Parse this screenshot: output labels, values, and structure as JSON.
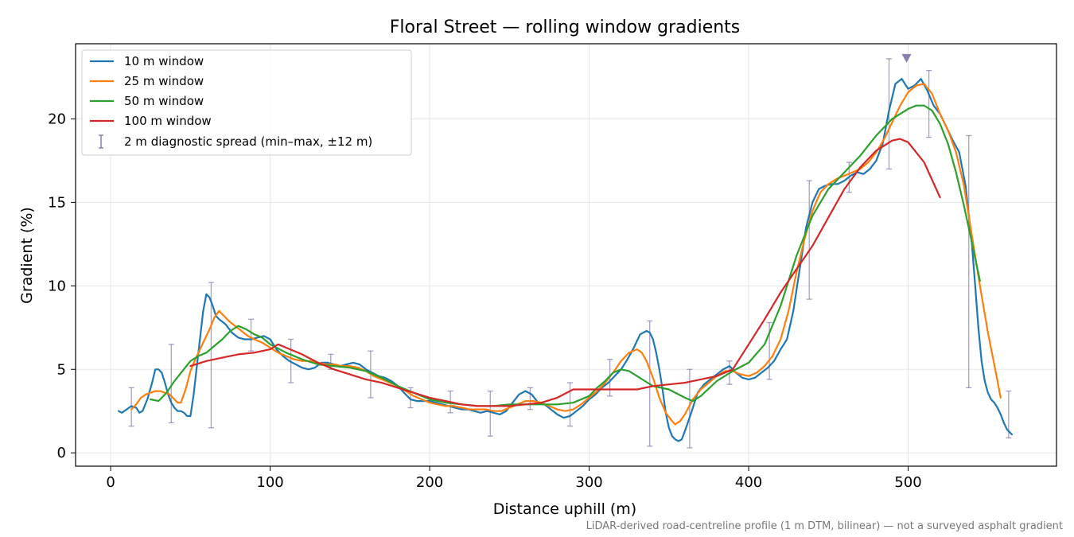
{
  "chart_data": {
    "type": "line",
    "title": "Floral Street — rolling window gradients",
    "xlabel": "Distance uphill (m)",
    "ylabel": "Gradient (%)",
    "xlim": [
      -22,
      593
    ],
    "ylim": [
      -0.8,
      24.5
    ],
    "xticks": [
      0,
      100,
      200,
      300,
      400,
      500
    ],
    "yticks": [
      0,
      5,
      10,
      15,
      20
    ],
    "grid": true,
    "legend_position": "top-left",
    "note": "LiDAR-derived road-centreline profile (1 m DTM, bilinear) — not a surveyed asphalt gradient",
    "series": [
      {
        "name": "10 m window",
        "color": "#1f77b4",
        "x": [
          5,
          7,
          10,
          13,
          16,
          18,
          20,
          23,
          26,
          28,
          30,
          32,
          34,
          36,
          38,
          40,
          42,
          44,
          46,
          48,
          50,
          52,
          55,
          58,
          60,
          62,
          64,
          66,
          68,
          72,
          76,
          80,
          84,
          88,
          92,
          96,
          100,
          104,
          108,
          112,
          116,
          120,
          124,
          128,
          132,
          136,
          140,
          144,
          148,
          152,
          156,
          160,
          164,
          168,
          172,
          176,
          180,
          184,
          188,
          192,
          196,
          200,
          204,
          208,
          212,
          216,
          220,
          224,
          228,
          232,
          236,
          240,
          244,
          248,
          252,
          256,
          260,
          264,
          268,
          272,
          276,
          280,
          284,
          288,
          292,
          296,
          300,
          304,
          308,
          312,
          316,
          320,
          324,
          328,
          332,
          336,
          338,
          340,
          342,
          344,
          346,
          348,
          350,
          352,
          354,
          356,
          358,
          360,
          364,
          368,
          372,
          376,
          380,
          384,
          388,
          392,
          396,
          400,
          404,
          408,
          412,
          416,
          420,
          424,
          428,
          432,
          436,
          440,
          444,
          448,
          452,
          456,
          460,
          464,
          468,
          472,
          476,
          480,
          484,
          488,
          492,
          496,
          500,
          504,
          508,
          512,
          516,
          520,
          524,
          528,
          532,
          536,
          540,
          542,
          544,
          546,
          548,
          550,
          552,
          554,
          556,
          558,
          560,
          562,
          565
        ],
        "y": [
          2.5,
          2.4,
          2.6,
          2.8,
          2.7,
          2.4,
          2.5,
          3.2,
          4.2,
          5.0,
          5.0,
          4.8,
          4.2,
          3.5,
          3.0,
          2.7,
          2.5,
          2.5,
          2.4,
          2.2,
          2.2,
          3.5,
          6.0,
          8.5,
          9.5,
          9.3,
          8.8,
          8.2,
          8.0,
          7.7,
          7.2,
          6.9,
          6.8,
          6.8,
          6.9,
          7.0,
          6.8,
          6.2,
          5.8,
          5.5,
          5.3,
          5.1,
          5.0,
          5.1,
          5.4,
          5.4,
          5.3,
          5.2,
          5.3,
          5.4,
          5.3,
          5.0,
          4.8,
          4.6,
          4.5,
          4.3,
          4.0,
          3.6,
          3.2,
          3.1,
          3.1,
          3.1,
          3.0,
          2.9,
          2.8,
          2.7,
          2.6,
          2.6,
          2.5,
          2.4,
          2.5,
          2.4,
          2.3,
          2.5,
          3.0,
          3.5,
          3.7,
          3.5,
          3.0,
          2.9,
          2.6,
          2.3,
          2.1,
          2.2,
          2.5,
          2.8,
          3.2,
          3.5,
          3.9,
          4.2,
          4.6,
          5.0,
          5.6,
          6.3,
          7.1,
          7.3,
          7.2,
          6.8,
          6.0,
          5.0,
          3.8,
          2.4,
          1.5,
          1.0,
          0.8,
          0.7,
          0.8,
          1.3,
          2.4,
          3.6,
          4.1,
          4.4,
          4.7,
          5.0,
          5.2,
          4.8,
          4.5,
          4.4,
          4.5,
          4.8,
          5.1,
          5.5,
          6.2,
          6.8,
          8.5,
          11.0,
          13.5,
          15.0,
          15.8,
          16.0,
          16.1,
          16.1,
          16.3,
          16.6,
          16.8,
          16.7,
          17.0,
          17.5,
          18.5,
          20.5,
          22.1,
          22.4,
          21.8,
          22.0,
          22.4,
          21.7,
          20.8,
          20.3,
          19.5,
          18.7,
          18.0,
          16.0,
          12.5,
          10.0,
          7.5,
          5.5,
          4.3,
          3.6,
          3.2,
          3.0,
          2.7,
          2.3,
          1.8,
          1.4,
          1.1
        ]
      },
      {
        "name": "25 m window",
        "color": "#ff7f0e",
        "x": [
          13,
          16,
          19,
          22,
          25,
          28,
          31,
          34,
          37,
          40,
          42,
          44,
          47,
          50,
          53,
          56,
          59,
          62,
          65,
          68,
          71,
          74,
          78,
          82,
          86,
          90,
          95,
          100,
          105,
          110,
          115,
          120,
          125,
          130,
          135,
          140,
          145,
          150,
          155,
          160,
          165,
          170,
          175,
          180,
          185,
          190,
          195,
          200,
          205,
          210,
          215,
          220,
          225,
          230,
          235,
          240,
          245,
          250,
          255,
          260,
          265,
          270,
          275,
          280,
          285,
          290,
          295,
          300,
          305,
          310,
          315,
          320,
          325,
          330,
          333,
          336,
          340,
          344,
          348,
          352,
          354,
          357,
          360,
          365,
          370,
          375,
          380,
          385,
          390,
          395,
          400,
          405,
          410,
          415,
          420,
          425,
          430,
          435,
          440,
          445,
          450,
          455,
          460,
          465,
          470,
          475,
          480,
          485,
          490,
          495,
          500,
          505,
          510,
          515,
          520,
          525,
          530,
          535,
          540,
          545,
          550,
          555,
          558
        ],
        "y": [
          2.6,
          2.9,
          3.3,
          3.5,
          3.6,
          3.7,
          3.7,
          3.6,
          3.5,
          3.2,
          3.0,
          3.0,
          3.8,
          4.9,
          5.6,
          6.2,
          6.8,
          7.4,
          8.1,
          8.5,
          8.2,
          7.9,
          7.6,
          7.3,
          7.0,
          6.8,
          6.6,
          6.3,
          6.0,
          5.8,
          5.6,
          5.5,
          5.5,
          5.4,
          5.3,
          5.3,
          5.2,
          5.2,
          5.1,
          4.9,
          4.6,
          4.4,
          4.2,
          4.0,
          3.7,
          3.4,
          3.2,
          3.0,
          2.9,
          2.8,
          2.8,
          2.7,
          2.6,
          2.6,
          2.6,
          2.5,
          2.5,
          2.7,
          2.9,
          3.1,
          3.1,
          3.0,
          2.8,
          2.6,
          2.5,
          2.6,
          2.9,
          3.3,
          3.7,
          4.2,
          4.8,
          5.5,
          6.0,
          6.2,
          6.0,
          5.5,
          4.5,
          3.3,
          2.4,
          1.9,
          1.7,
          1.9,
          2.3,
          3.2,
          3.8,
          4.2,
          4.6,
          4.9,
          4.9,
          4.7,
          4.6,
          4.8,
          5.2,
          5.8,
          6.8,
          8.5,
          10.8,
          12.8,
          14.5,
          15.6,
          16.1,
          16.4,
          16.6,
          16.8,
          17.0,
          17.4,
          18.0,
          18.8,
          19.8,
          20.8,
          21.6,
          22.0,
          22.1,
          21.5,
          20.3,
          19.3,
          18.0,
          16.0,
          13.0,
          10.0,
          7.2,
          4.8,
          3.3
        ]
      },
      {
        "name": "50 m window",
        "color": "#2ca02c",
        "x": [
          25,
          30,
          35,
          40,
          45,
          50,
          55,
          60,
          65,
          70,
          75,
          80,
          85,
          90,
          95,
          100,
          110,
          120,
          130,
          140,
          150,
          160,
          170,
          180,
          190,
          200,
          210,
          220,
          230,
          240,
          250,
          260,
          270,
          280,
          290,
          300,
          305,
          310,
          315,
          320,
          325,
          330,
          335,
          340,
          350,
          360,
          365,
          370,
          380,
          390,
          400,
          410,
          420,
          430,
          440,
          450,
          460,
          470,
          480,
          490,
          500,
          505,
          510,
          515,
          520,
          525,
          530,
          535,
          540,
          545
        ],
        "y": [
          3.2,
          3.1,
          3.6,
          4.3,
          4.9,
          5.5,
          5.8,
          6.0,
          6.4,
          6.8,
          7.3,
          7.6,
          7.4,
          7.1,
          6.9,
          6.5,
          6.0,
          5.6,
          5.3,
          5.2,
          5.1,
          4.9,
          4.5,
          4.0,
          3.6,
          3.2,
          3.0,
          2.9,
          2.8,
          2.8,
          2.9,
          2.9,
          2.9,
          2.9,
          3.0,
          3.4,
          3.9,
          4.3,
          4.8,
          5.0,
          4.9,
          4.6,
          4.3,
          4.0,
          3.8,
          3.3,
          3.1,
          3.4,
          4.3,
          4.9,
          5.4,
          6.5,
          8.8,
          11.8,
          14.2,
          15.8,
          16.8,
          17.8,
          19.0,
          20.0,
          20.6,
          20.8,
          20.8,
          20.5,
          19.7,
          18.5,
          16.8,
          14.8,
          12.6,
          10.3
        ]
      },
      {
        "name": "100 m window",
        "color": "#d62728",
        "x": [
          50,
          60,
          70,
          80,
          90,
          100,
          105,
          110,
          120,
          130,
          140,
          150,
          160,
          170,
          180,
          190,
          200,
          210,
          220,
          230,
          240,
          250,
          260,
          270,
          280,
          290,
          300,
          310,
          320,
          330,
          340,
          350,
          360,
          370,
          380,
          390,
          400,
          410,
          420,
          430,
          440,
          450,
          460,
          470,
          480,
          490,
          495,
          500,
          510,
          520
        ],
        "y": [
          5.2,
          5.5,
          5.7,
          5.9,
          6.0,
          6.2,
          6.5,
          6.3,
          5.9,
          5.4,
          5.0,
          4.7,
          4.4,
          4.2,
          3.9,
          3.6,
          3.3,
          3.1,
          2.9,
          2.8,
          2.8,
          2.8,
          2.9,
          3.0,
          3.3,
          3.8,
          3.8,
          3.8,
          3.8,
          3.8,
          4.0,
          4.1,
          4.2,
          4.4,
          4.6,
          5.0,
          6.5,
          8.0,
          9.6,
          11.0,
          12.4,
          14.1,
          15.8,
          17.1,
          18.1,
          18.7,
          18.8,
          18.6,
          17.4,
          15.3
        ]
      }
    ],
    "error_bars": {
      "name": "2 m diagnostic spread (min–max, ±12 m)",
      "color": "#8c7eb0",
      "points": [
        {
          "x": 13,
          "low": 1.6,
          "high": 3.9
        },
        {
          "x": 38,
          "low": 1.8,
          "high": 6.5
        },
        {
          "x": 63,
          "low": 1.5,
          "high": 10.2
        },
        {
          "x": 88,
          "low": 6.1,
          "high": 8.0
        },
        {
          "x": 113,
          "low": 4.2,
          "high": 6.8
        },
        {
          "x": 138,
          "low": 5.0,
          "high": 5.9
        },
        {
          "x": 163,
          "low": 3.3,
          "high": 6.1
        },
        {
          "x": 188,
          "low": 2.7,
          "high": 3.9
        },
        {
          "x": 213,
          "low": 2.4,
          "high": 3.7
        },
        {
          "x": 238,
          "low": 1.0,
          "high": 3.7
        },
        {
          "x": 263,
          "low": 2.6,
          "high": 3.9
        },
        {
          "x": 288,
          "low": 1.6,
          "high": 4.2
        },
        {
          "x": 313,
          "low": 3.4,
          "high": 5.6
        },
        {
          "x": 338,
          "low": 0.4,
          "high": 7.9
        },
        {
          "x": 363,
          "low": 0.3,
          "high": 5.0
        },
        {
          "x": 388,
          "low": 4.1,
          "high": 5.5
        },
        {
          "x": 413,
          "low": 4.4,
          "high": 7.8
        },
        {
          "x": 438,
          "low": 9.2,
          "high": 16.3
        },
        {
          "x": 463,
          "low": 15.6,
          "high": 17.4
        },
        {
          "x": 488,
          "low": 17.0,
          "high": 23.6
        },
        {
          "x": 513,
          "low": 18.9,
          "high": 22.9
        },
        {
          "x": 538,
          "low": 3.9,
          "high": 19.0
        },
        {
          "x": 563,
          "low": 0.9,
          "high": 3.7
        }
      ]
    },
    "max_marker": {
      "x": 499,
      "y": 23.6,
      "color": "#8c7eb0"
    }
  }
}
